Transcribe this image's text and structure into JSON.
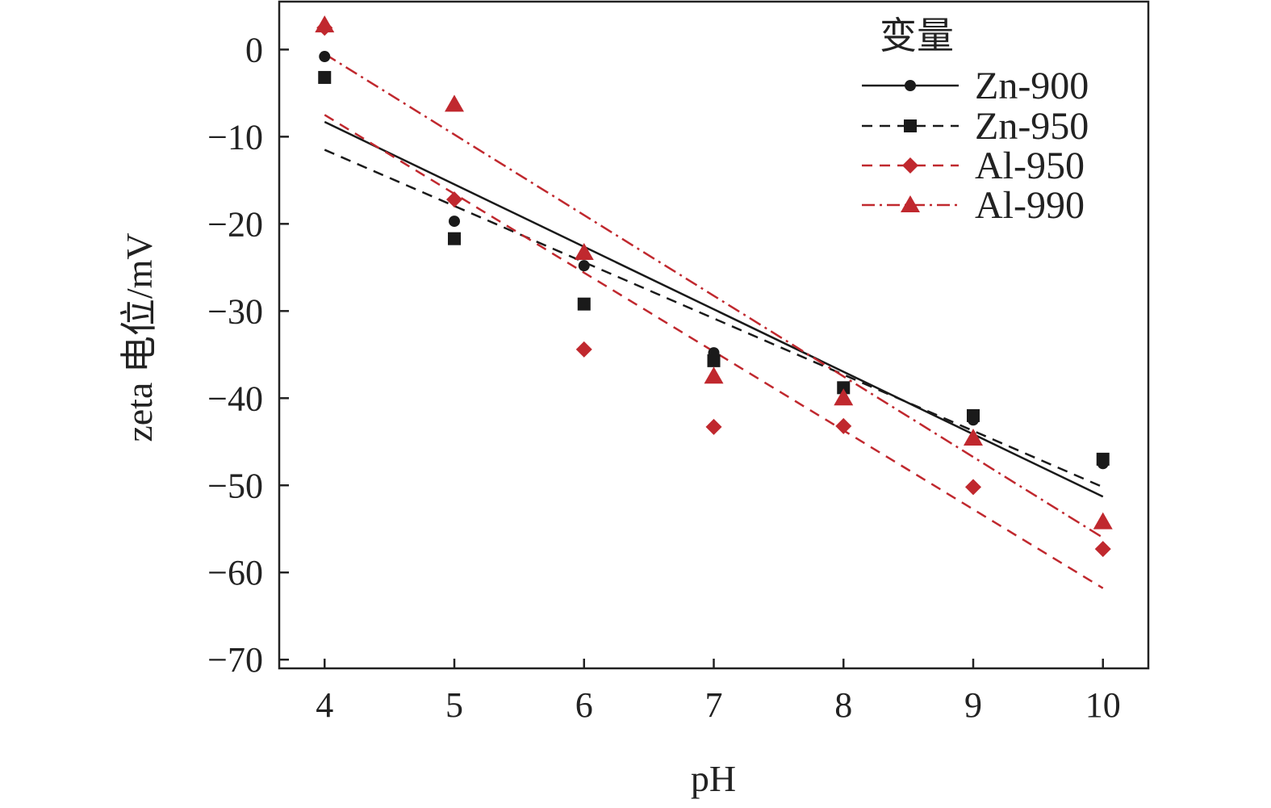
{
  "chart_data": {
    "type": "scatter",
    "xlabel": "pH",
    "ylabel": "zeta 电位/mV",
    "xlim": [
      3.65,
      10.35
    ],
    "ylim": [
      -71,
      5.5
    ],
    "x_ticks": [
      "4",
      "5",
      "6",
      "7",
      "8",
      "9",
      "10"
    ],
    "y_ticks": [
      "0",
      "−10",
      "−20",
      "−30",
      "−40",
      "−50",
      "−60",
      "−70"
    ],
    "legend_title": "变量",
    "legend_position": "top-right",
    "grid": false,
    "series": [
      {
        "name": "Zn-900",
        "color": "#1a1a1a",
        "marker": "circle",
        "line_style": "solid",
        "x": [
          4,
          5,
          6,
          7,
          8,
          9,
          10
        ],
        "y": [
          -0.8,
          -19.7,
          -24.8,
          -34.8,
          -38.8,
          -42.5,
          -47.5
        ],
        "fit": [
          [
            4,
            -8.3
          ],
          [
            10,
            -51.3
          ]
        ]
      },
      {
        "name": "Zn-950",
        "color": "#1a1a1a",
        "marker": "square",
        "line_style": "dashed",
        "x": [
          4,
          5,
          6,
          7,
          8,
          9,
          10
        ],
        "y": [
          -3.2,
          -21.7,
          -29.2,
          -35.7,
          -38.8,
          -42,
          -47
        ],
        "fit": [
          [
            4,
            -11.5
          ],
          [
            10,
            -50.2
          ]
        ]
      },
      {
        "name": "Al-950",
        "color": "#c0282e",
        "marker": "diamond",
        "line_style": "dashed",
        "x": [
          4,
          5,
          6,
          7,
          8,
          9,
          10
        ],
        "y": [
          2.5,
          -17.2,
          -34.4,
          -43.3,
          -43.2,
          -50.2,
          -57.3
        ],
        "fit": [
          [
            4,
            -7.5
          ],
          [
            10,
            -61.8
          ]
        ]
      },
      {
        "name": "Al-990",
        "color": "#c0282e",
        "marker": "triangle",
        "line_style": "dash-dot",
        "x": [
          4,
          5,
          6,
          7,
          8,
          9,
          10
        ],
        "y": [
          2.8,
          -6.3,
          -23.3,
          -37.5,
          -40,
          -44.6,
          -54.2
        ],
        "fit": [
          [
            4,
            -0.5
          ],
          [
            10,
            -56
          ]
        ]
      }
    ]
  }
}
